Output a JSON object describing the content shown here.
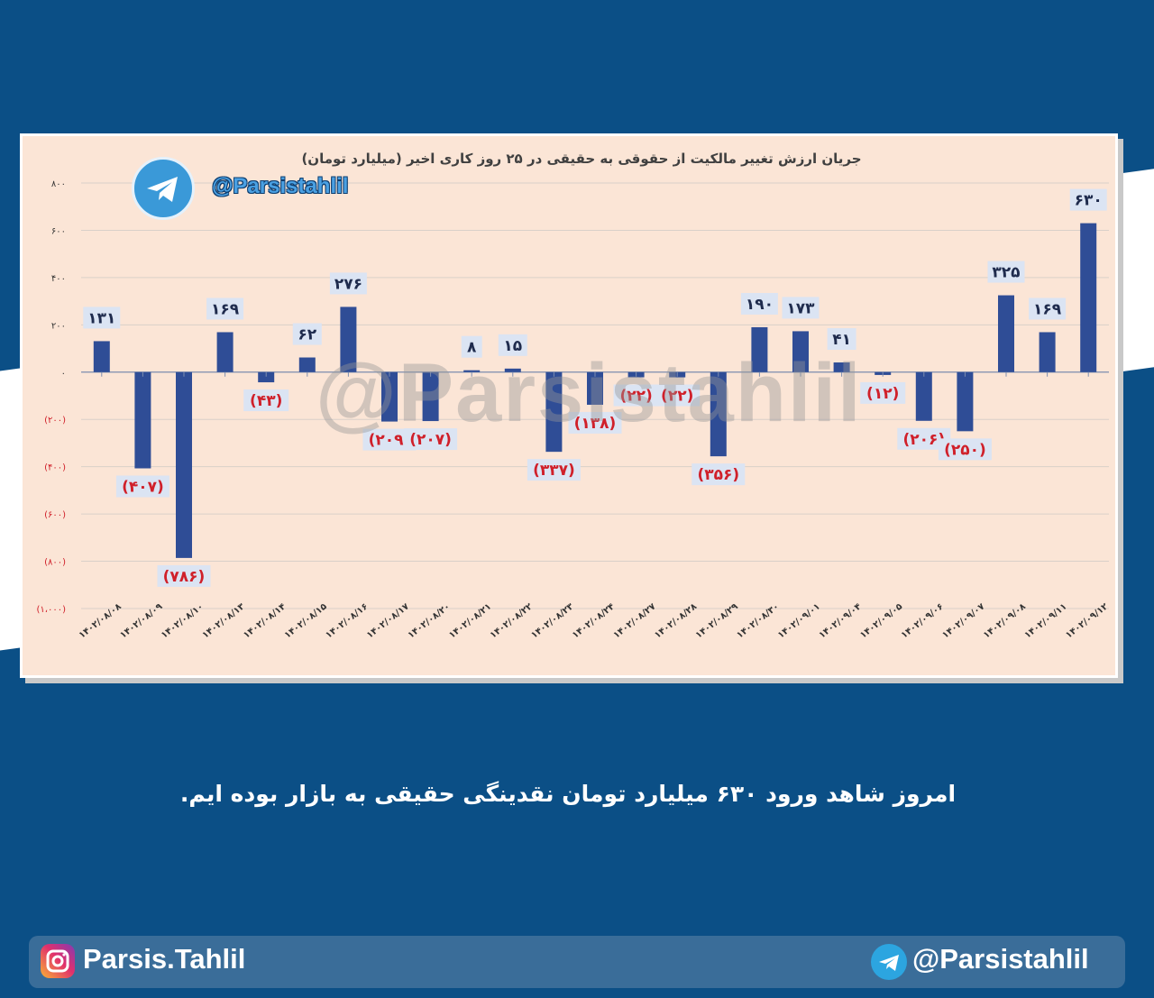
{
  "chart_data": {
    "type": "bar",
    "title": "جریان ارزش تغییر مالکیت از حقوقی به حقیقی در ۲۵ روز کاری اخیر (میلیارد تومان)",
    "categories": [
      "۱۴۰۲/۰۸/۰۸",
      "۱۴۰۲/۰۸/۰۹",
      "۱۴۰۲/۰۸/۱۰",
      "۱۴۰۲/۰۸/۱۳",
      "۱۴۰۲/۰۸/۱۴",
      "۱۴۰۲/۰۸/۱۵",
      "۱۴۰۲/۰۸/۱۶",
      "۱۴۰۲/۰۸/۱۷",
      "۱۴۰۲/۰۸/۲۰",
      "۱۴۰۲/۰۸/۲۱",
      "۱۴۰۲/۰۸/۲۲",
      "۱۴۰۲/۰۸/۲۳",
      "۱۴۰۲/۰۸/۲۴",
      "۱۴۰۲/۰۸/۲۷",
      "۱۴۰۲/۰۸/۲۸",
      "۱۴۰۲/۰۸/۲۹",
      "۱۴۰۲/۰۸/۳۰",
      "۱۴۰۲/۰۹/۰۱",
      "۱۴۰۲/۰۹/۰۴",
      "۱۴۰۲/۰۹/۰۵",
      "۱۴۰۲/۰۹/۰۶",
      "۱۴۰۲/۰۹/۰۷",
      "۱۴۰۲/۰۹/۰۸",
      "۱۴۰۲/۰۹/۱۱",
      "۱۴۰۲/۰۹/۱۲"
    ],
    "values": [
      131,
      -407,
      -786,
      169,
      -43,
      62,
      276,
      -209,
      -207,
      8,
      15,
      -337,
      -138,
      -22,
      -22,
      -356,
      190,
      173,
      41,
      -12,
      -206,
      -250,
      325,
      169,
      630
    ],
    "value_labels": [
      "۱۳۱",
      "(۴۰۷)",
      "(۷۸۶)",
      "۱۶۹",
      "(۴۳)",
      "۶۲",
      "۲۷۶",
      "(۲۰۹)",
      "(۲۰۷)",
      "۸",
      "۱۵",
      "(۳۳۷)",
      "(۱۳۸)",
      "(۲۲)",
      "(۲۲)",
      "(۳۵۶)",
      "۱۹۰",
      "۱۷۳",
      "۴۱",
      "(۱۲)",
      "(۲۰۶)",
      "(۲۵۰)",
      "۳۲۵",
      "۱۶۹",
      "۶۳۰"
    ],
    "yticks": [
      800,
      600,
      400,
      200,
      0,
      -200,
      -400,
      -600,
      -800,
      -1000
    ],
    "ytick_labels": [
      "۸۰۰",
      "۶۰۰",
      "۴۰۰",
      "۲۰۰",
      "۰",
      "(۲۰۰)",
      "(۴۰۰)",
      "(۶۰۰)",
      "(۸۰۰)",
      "(۱،۰۰۰)"
    ],
    "ylim": [
      -1000,
      800
    ],
    "grid": true,
    "colors": {
      "bar": "#2f4d96",
      "positive_label": "#1f2b4d",
      "negative_label": "#d0202a",
      "label_box": "#dbe4f3"
    }
  },
  "header": {
    "telegram_handle": "@Parsistahlil"
  },
  "watermark": "@Parsistahlil",
  "caption": "امروز شاهد ورود ۶۳۰ میلیارد تومان نقدینگی حقیقی به بازار بوده ایم.",
  "footer": {
    "instagram": "Parsis.Tahlil",
    "telegram": "@Parsistahlil"
  },
  "icons": {
    "header_logo": "telegram-icon",
    "footer_left": "instagram-icon",
    "footer_right": "telegram-icon"
  }
}
